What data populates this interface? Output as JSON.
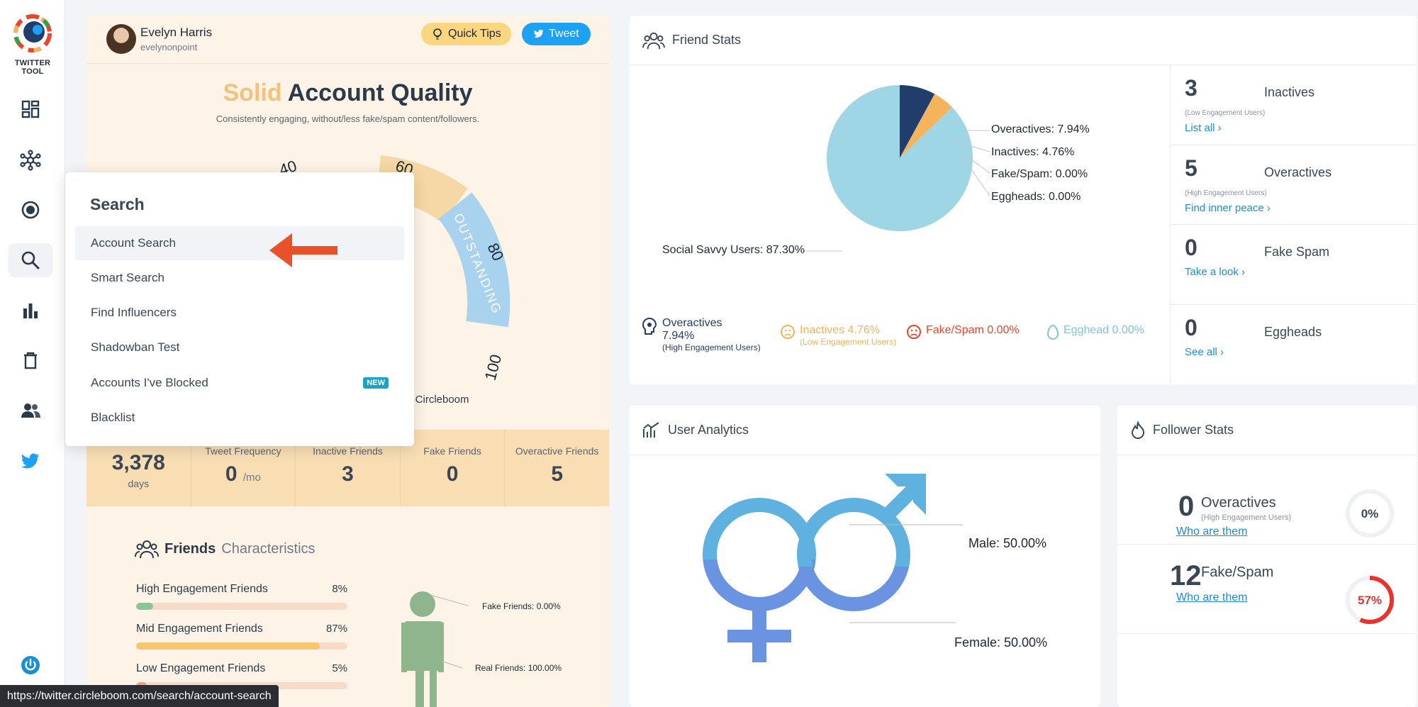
{
  "sidebar": {
    "logo_text": "TWITTER TOOL"
  },
  "account": {
    "name": "Evelyn Harris",
    "handle": "evelynonpoint",
    "quick_tips": "Quick Tips",
    "tweet": "Tweet",
    "quality_word": "Solid",
    "quality_rest": "Account Quality",
    "quality_sub": "Consistently engaging, without/less fake/spam content/followers.",
    "gauge_labels": [
      "40",
      "60",
      "80",
      "100"
    ],
    "gauge_band": "OUTSTANDING",
    "by_text": "y Circleboom",
    "metrics": [
      {
        "label": "",
        "value": "3,378",
        "unit": "days"
      },
      {
        "label": "Tweet Frequency",
        "value": "0",
        "unit": "/mo"
      },
      {
        "label": "Inactive Friends",
        "value": "3"
      },
      {
        "label": "Fake Friends",
        "value": "0"
      },
      {
        "label": "Overactive Friends",
        "value": "5"
      }
    ],
    "fc_title_bold": "Friends",
    "fc_title_light": "Characteristics",
    "bars": [
      {
        "label": "High Engagement Friends",
        "pct": "8%",
        "value": 0.08,
        "color": "#8cc49a"
      },
      {
        "label": "Mid Engagement Friends",
        "pct": "87%",
        "value": 0.87,
        "color": "#f6c76e"
      },
      {
        "label": "Low Engagement Friends",
        "pct": "5%",
        "value": 0.05,
        "color": "#f39f7b"
      }
    ],
    "person_fake": "Fake Friends: 0.00%",
    "person_real": "Real Friends: 100.00%"
  },
  "search_menu": {
    "title": "Search",
    "items": [
      {
        "label": "Account Search"
      },
      {
        "label": "Smart Search"
      },
      {
        "label": "Find Influencers"
      },
      {
        "label": "Shadowban Test"
      },
      {
        "label": "Accounts I've Blocked",
        "badge": "NEW"
      },
      {
        "label": "Blacklist"
      }
    ]
  },
  "friend_stats": {
    "title": "Friend Stats",
    "pie_labels": {
      "overactives": "Overactives: 7.94%",
      "inactives": "Inactives: 4.76%",
      "fake": "Fake/Spam: 0.00%",
      "eggheads": "Eggheads: 0.00%",
      "social": "Social Savvy Users: 87.30%"
    },
    "legend": {
      "overactives": "Overactives",
      "overactives_pct": "7.94%",
      "overactives_sub": "(High Engagement Users)",
      "inactives": "Inactives 4.76%",
      "inactives_sub": "(Low Engagement Users)",
      "fake": "Fake/Spam 0.00%",
      "egghead": "Egghead 0.00%"
    },
    "cells": [
      {
        "num": "3",
        "name": "Inactives",
        "sub": "(Low Engagement Users)",
        "link": "List all ›"
      },
      {
        "num": "5",
        "name": "Overactives",
        "sub": "(High Engagement Users)",
        "link": "Find inner peace ›"
      },
      {
        "num": "0",
        "name": "Fake Spam",
        "sub": "",
        "link": "Take a look ›"
      },
      {
        "num": "0",
        "name": "Eggheads",
        "sub": "",
        "link": "See all ›"
      }
    ]
  },
  "chart_data": {
    "type": "pie",
    "categories": [
      "Overactives",
      "Inactives",
      "Fake/Spam",
      "Eggheads",
      "Social Savvy Users"
    ],
    "values": [
      7.94,
      4.76,
      0.0,
      0.0,
      87.3
    ],
    "colors": [
      "#213d6b",
      "#f4b45c",
      "#e8452c",
      "#7fc6dc",
      "#9ed6e6"
    ]
  },
  "user_analytics": {
    "title": "User Analytics",
    "male": "Male: 50.00%",
    "female": "Female: 50.00%"
  },
  "follower_stats": {
    "title": "Follower Stats",
    "rows": [
      {
        "num": "0",
        "name": "Overactives",
        "sub": "(High Engagement Users)",
        "link": "Who are them",
        "pct": "0%",
        "value": 0
      },
      {
        "num": "12",
        "name": "Fake/Spam",
        "sub": "",
        "link": "Who are them",
        "pct": "57%",
        "value": 0.57
      }
    ]
  },
  "status_url": "https://twitter.circleboom.com/search/account-search"
}
